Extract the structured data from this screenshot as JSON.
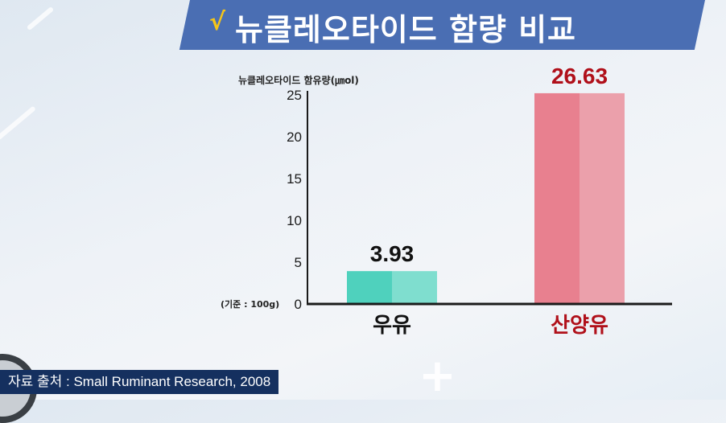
{
  "title": {
    "check": "√",
    "text": "뉴클레오타이드 함량 비교"
  },
  "source": "자료 출처 : Small Ruminant Research, 2008",
  "chart_data": {
    "type": "bar",
    "title": "뉴클레오타이드 함량 비교",
    "ylabel": "뉴클레오타이드 함유량(㎛ol)",
    "yticks": [
      0,
      5,
      10,
      15,
      20,
      25
    ],
    "ylim": [
      0,
      25
    ],
    "basis_note": "(기준 : 100g)",
    "categories": [
      "우유",
      "산양유"
    ],
    "values": [
      3.93,
      26.63
    ],
    "value_labels": [
      "3.93",
      "26.63"
    ],
    "colors": {
      "bar": [
        "#4fd1bd",
        "#e8808f"
      ],
      "bar_light": [
        "#7fdecf",
        "#eba0ab"
      ],
      "value_label": [
        "#111111",
        "#b0101a"
      ],
      "category_label": [
        "#111111",
        "#b0101a"
      ]
    }
  }
}
